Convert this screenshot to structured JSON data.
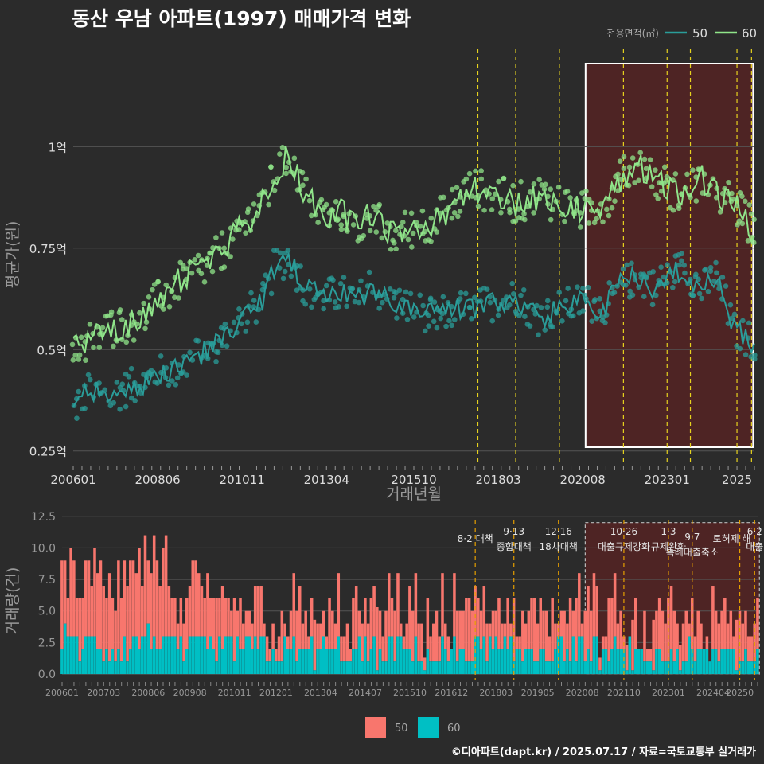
{
  "title": "동산 우남 아파트(1997) 매매가격 변화",
  "footer": "©디아파트(dapt.kr) / 2025.07.17 / 자료=국토교통부 실거래가",
  "colors": {
    "bg": "#2b2b2b",
    "grid": "#555555",
    "line50": "#2a9d9a",
    "line60": "#90e58a",
    "bar50": "#f8766d",
    "bar60": "#00bfc4",
    "event": "#e6d21e",
    "event_bar": "#e69f00",
    "highlight": "#6b1f1f",
    "text": "#dddddd"
  },
  "chart_data": [
    {
      "type": "line",
      "title": "동산 우남 아파트(1997) 매매가격 변화",
      "xlabel": "거래년월",
      "ylabel": "평균가(원)",
      "legend_title": "전용면적(㎡)",
      "legend_position": "top-right",
      "x_ticks": [
        "200601",
        "200806",
        "201011",
        "201304",
        "201510",
        "201803",
        "202008",
        "202301",
        "2025"
      ],
      "y_ticks": [
        {
          "value": 0.25,
          "label": "0.25억"
        },
        {
          "value": 0.5,
          "label": "0.5억"
        },
        {
          "value": 0.75,
          "label": "0.75억"
        },
        {
          "value": 1.0,
          "label": "1억"
        }
      ],
      "ylim": [
        0.22,
        1.24
      ],
      "xlim": [
        "2006-01",
        "2025-07"
      ],
      "event_months": [
        "2017-08",
        "2018-09",
        "2019-12",
        "2021-10",
        "2023-01",
        "2023-09",
        "2025-01",
        "2025-06"
      ],
      "highlight": {
        "from": "2020-09",
        "to": "2025-06"
      },
      "series": [
        {
          "name": "50",
          "points": [
            [
              "2006-01",
              0.35
            ],
            [
              "2006-06",
              0.4
            ],
            [
              "2007-01",
              0.38
            ],
            [
              "2007-06",
              0.4
            ],
            [
              "2008-01",
              0.42
            ],
            [
              "2008-06",
              0.44
            ],
            [
              "2008-12",
              0.45
            ],
            [
              "2009-06",
              0.48
            ],
            [
              "2009-12",
              0.5
            ],
            [
              "2010-06",
              0.54
            ],
            [
              "2010-11",
              0.58
            ],
            [
              "2011-06",
              0.62
            ],
            [
              "2011-10",
              0.7
            ],
            [
              "2012-03",
              0.73
            ],
            [
              "2012-09",
              0.65
            ],
            [
              "2013-04",
              0.63
            ],
            [
              "2013-09",
              0.64
            ],
            [
              "2014-03",
              0.62
            ],
            [
              "2014-07",
              0.66
            ],
            [
              "2015-01",
              0.62
            ],
            [
              "2015-10",
              0.6
            ],
            [
              "2016-06",
              0.58
            ],
            [
              "2016-12",
              0.6
            ],
            [
              "2017-06",
              0.6
            ],
            [
              "2018-03",
              0.62
            ],
            [
              "2018-09",
              0.63
            ],
            [
              "2019-05",
              0.58
            ],
            [
              "2019-12",
              0.6
            ],
            [
              "2020-08",
              0.62
            ],
            [
              "2021-03",
              0.6
            ],
            [
              "2021-09",
              0.66
            ],
            [
              "2022-03",
              0.68
            ],
            [
              "2022-09",
              0.65
            ],
            [
              "2023-01",
              0.68
            ],
            [
              "2023-06",
              0.7
            ],
            [
              "2024-01",
              0.65
            ],
            [
              "2024-06",
              0.68
            ],
            [
              "2024-12",
              0.55
            ],
            [
              "2025-06",
              0.52
            ]
          ]
        },
        {
          "name": "60",
          "points": [
            [
              "2006-01",
              0.5
            ],
            [
              "2006-06",
              0.52
            ],
            [
              "2007-01",
              0.55
            ],
            [
              "2007-06",
              0.56
            ],
            [
              "2008-01",
              0.58
            ],
            [
              "2008-06",
              0.62
            ],
            [
              "2008-12",
              0.66
            ],
            [
              "2009-06",
              0.69
            ],
            [
              "2009-12",
              0.71
            ],
            [
              "2010-06",
              0.76
            ],
            [
              "2010-11",
              0.8
            ],
            [
              "2011-06",
              0.86
            ],
            [
              "2011-10",
              0.92
            ],
            [
              "2012-03",
              0.98
            ],
            [
              "2012-09",
              0.88
            ],
            [
              "2013-04",
              0.82
            ],
            [
              "2013-09",
              0.84
            ],
            [
              "2014-03",
              0.8
            ],
            [
              "2014-07",
              0.84
            ],
            [
              "2015-01",
              0.78
            ],
            [
              "2015-10",
              0.8
            ],
            [
              "2016-06",
              0.82
            ],
            [
              "2016-12",
              0.86
            ],
            [
              "2017-06",
              0.9
            ],
            [
              "2018-03",
              0.88
            ],
            [
              "2018-09",
              0.86
            ],
            [
              "2019-05",
              0.88
            ],
            [
              "2019-12",
              0.86
            ],
            [
              "2020-08",
              0.84
            ],
            [
              "2021-03",
              0.86
            ],
            [
              "2021-09",
              0.92
            ],
            [
              "2022-03",
              0.96
            ],
            [
              "2022-09",
              0.92
            ],
            [
              "2023-01",
              0.9
            ],
            [
              "2023-06",
              0.88
            ],
            [
              "2024-01",
              0.92
            ],
            [
              "2024-06",
              0.88
            ],
            [
              "2024-12",
              0.86
            ],
            [
              "2025-06",
              0.8
            ]
          ]
        }
      ]
    },
    {
      "type": "bar",
      "xlabel": "",
      "ylabel": "거래량(건)",
      "stacked": true,
      "legend_position": "bottom",
      "legend": [
        "50",
        "60"
      ],
      "x_ticks": [
        "200601",
        "200703",
        "200806",
        "200908",
        "201011",
        "201201",
        "201304",
        "201407",
        "201510",
        "201612",
        "201803",
        "201905",
        "202008",
        "202110",
        "202301",
        "202404",
        "20250"
      ],
      "y_ticks": [
        {
          "value": 0,
          "label": "0.0"
        },
        {
          "value": 2.5,
          "label": "2.5"
        },
        {
          "value": 5,
          "label": "5.0"
        },
        {
          "value": 7.5,
          "label": "7.5"
        },
        {
          "value": 10,
          "label": "10.0"
        },
        {
          "value": 12.5,
          "label": "12.5"
        }
      ],
      "ylim": [
        -0.5,
        12.8
      ],
      "highlight": {
        "from": "2020-09",
        "to": "2025-06"
      },
      "annotations": [
        {
          "month": "2017-08",
          "lines": [
            "8·2 대책"
          ]
        },
        {
          "month": "2018-09",
          "lines": [
            "9·13",
            "종합대책"
          ]
        },
        {
          "month": "2019-12",
          "lines": [
            "12·16",
            "18차대책"
          ]
        },
        {
          "month": "2021-10",
          "lines": [
            "10·26",
            "대출규제강화"
          ]
        },
        {
          "month": "2023-01",
          "lines": [
            "1·3",
            "규제완화"
          ]
        },
        {
          "month": "2023-09",
          "lines": [
            "9·7",
            "특례대출축소"
          ]
        },
        {
          "month": "2025-01",
          "lines": [
            "토허제 해"
          ]
        },
        {
          "month": "2025-06",
          "lines": [
            "6·2",
            "대출"
          ]
        }
      ],
      "yearly_volume": [
        {
          "year": 2006,
          "s50": 4.2,
          "s60": 2.2
        },
        {
          "year": 2007,
          "s50": 4.0,
          "s60": 2.0
        },
        {
          "year": 2008,
          "s50": 5.2,
          "s60": 2.4
        },
        {
          "year": 2009,
          "s50": 3.6,
          "s60": 1.8
        },
        {
          "year": 2010,
          "s50": 3.0,
          "s60": 1.8
        },
        {
          "year": 2011,
          "s50": 2.6,
          "s60": 1.6
        },
        {
          "year": 2012,
          "s50": 2.0,
          "s60": 1.4
        },
        {
          "year": 2013,
          "s50": 2.0,
          "s60": 1.4
        },
        {
          "year": 2014,
          "s50": 2.2,
          "s60": 1.4
        },
        {
          "year": 2015,
          "s50": 2.4,
          "s60": 1.5
        },
        {
          "year": 2016,
          "s50": 2.0,
          "s60": 1.3
        },
        {
          "year": 2017,
          "s50": 2.4,
          "s60": 1.5
        },
        {
          "year": 2018,
          "s50": 2.0,
          "s60": 1.4
        },
        {
          "year": 2019,
          "s50": 2.6,
          "s60": 1.6
        },
        {
          "year": 2020,
          "s50": 2.4,
          "s60": 1.6
        },
        {
          "year": 2021,
          "s50": 1.8,
          "s60": 1.2
        },
        {
          "year": 2022,
          "s50": 1.4,
          "s60": 1.0
        },
        {
          "year": 2023,
          "s50": 1.6,
          "s60": 1.1
        },
        {
          "year": 2024,
          "s50": 1.6,
          "s60": 1.1
        },
        {
          "year": 2025,
          "s50": 1.8,
          "s60": 1.2
        }
      ]
    }
  ]
}
